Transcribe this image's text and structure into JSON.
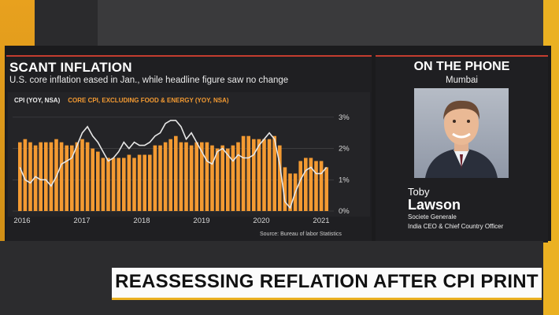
{
  "chart": {
    "title": "SCANT INFLATION",
    "subtitle": "U.S. core inflation eased in Jan., while headline figure saw no change",
    "legend_cpi": "CPI (YOY, NSA)",
    "legend_core": "CORE CPI, EXCLUDING FOOD & ENERGY (YOY, NSA)",
    "source": "Source: Bureau of labor Statistics",
    "colors": {
      "core": "#f39a32",
      "cpi": "#e6e6e6"
    }
  },
  "chart_data": {
    "type": "bar",
    "x_labels": [
      "2016",
      "2017",
      "2018",
      "2019",
      "2020",
      "2021"
    ],
    "y_ticks": [
      "0%",
      "1%",
      "2%",
      "3%"
    ],
    "ylim": [
      0,
      3.4
    ],
    "series": [
      {
        "name": "CORE CPI, EXCLUDING FOOD & ENERGY (YOY, NSA)",
        "type": "bar",
        "values": [
          2.2,
          2.3,
          2.2,
          2.1,
          2.2,
          2.2,
          2.2,
          2.3,
          2.2,
          2.1,
          2.1,
          2.2,
          2.3,
          2.2,
          2.0,
          1.9,
          1.7,
          1.7,
          1.7,
          1.7,
          1.7,
          1.8,
          1.7,
          1.8,
          1.8,
          1.8,
          2.1,
          2.1,
          2.2,
          2.3,
          2.4,
          2.2,
          2.2,
          2.1,
          2.2,
          2.2,
          2.2,
          2.1,
          2.0,
          2.1,
          2.0,
          2.1,
          2.2,
          2.4,
          2.4,
          2.3,
          2.3,
          2.3,
          2.3,
          2.4,
          2.1,
          1.4,
          1.2,
          1.2,
          1.6,
          1.7,
          1.7,
          1.6,
          1.6,
          1.4
        ]
      },
      {
        "name": "CPI (YOY, NSA)",
        "type": "line",
        "values": [
          1.4,
          1.0,
          0.9,
          1.1,
          1.0,
          1.0,
          0.8,
          1.1,
          1.5,
          1.6,
          1.7,
          2.1,
          2.5,
          2.7,
          2.4,
          2.2,
          1.9,
          1.6,
          1.7,
          1.9,
          2.2,
          2.0,
          2.2,
          2.1,
          2.1,
          2.2,
          2.4,
          2.5,
          2.8,
          2.9,
          2.9,
          2.7,
          2.3,
          2.5,
          2.2,
          1.9,
          1.6,
          1.5,
          1.9,
          2.0,
          1.8,
          1.6,
          1.8,
          1.7,
          1.7,
          1.8,
          2.1,
          2.3,
          2.5,
          2.3,
          1.5,
          0.3,
          0.1,
          0.6,
          1.0,
          1.3,
          1.4,
          1.2,
          1.2,
          1.4
        ]
      }
    ],
    "grid": true
  },
  "guest": {
    "header": "ON THE PHONE",
    "location": "Mumbai",
    "first_name": "Toby",
    "last_name": "Lawson",
    "company": "Societe Generale",
    "role": "India CEO & Chief Country Officer"
  },
  "ticker": {
    "headline": "REASSESSING REFLATION AFTER CPI PRINT"
  }
}
